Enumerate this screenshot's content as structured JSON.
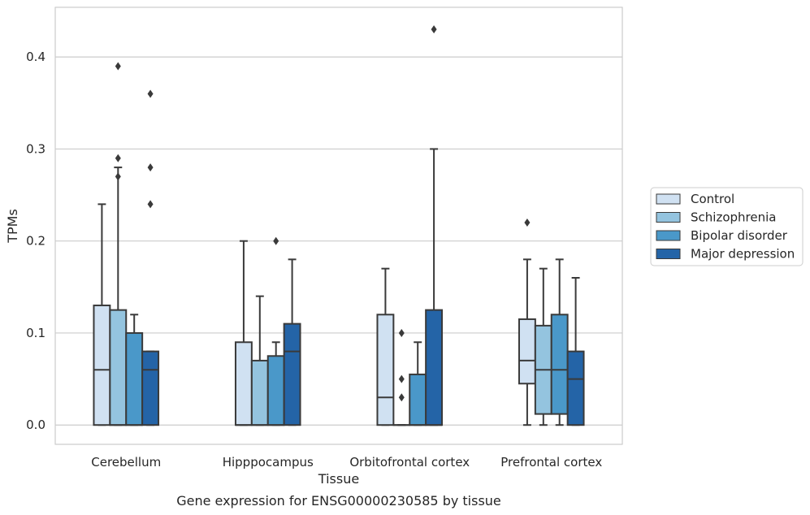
{
  "chart_data": {
    "type": "box",
    "xlabel": "Tissue",
    "ylabel": "TPMs",
    "caption": "Gene expression for ENSG00000230585 by tissue",
    "ylim": [
      -0.021,
      0.454
    ],
    "yticks": [
      0.0,
      0.1,
      0.2,
      0.3,
      0.4
    ],
    "ytick_labels": [
      "0.0",
      "0.1",
      "0.2",
      "0.3",
      "0.4"
    ],
    "grid": "horizontal",
    "legend_position": "right",
    "categories": [
      "Cerebellum",
      "Hipppocampus",
      "Orbitofrontal cortex",
      "Prefrontal cortex"
    ],
    "series": [
      {
        "name": "Control",
        "color": "#d0e1f2",
        "boxes": [
          {
            "whislo": 0.0,
            "q1": 0.0,
            "med": 0.06,
            "q3": 0.13,
            "whishi": 0.24,
            "fliers": []
          },
          {
            "whislo": 0.0,
            "q1": 0.0,
            "med": 0.0,
            "q3": 0.09,
            "whishi": 0.2,
            "fliers": []
          },
          {
            "whislo": 0.0,
            "q1": 0.0,
            "med": 0.03,
            "q3": 0.12,
            "whishi": 0.17,
            "fliers": []
          },
          {
            "whislo": 0.0,
            "q1": 0.045,
            "med": 0.07,
            "q3": 0.115,
            "whishi": 0.18,
            "fliers": [
              0.22
            ]
          }
        ]
      },
      {
        "name": "Schizophrenia",
        "color": "#94c4df",
        "boxes": [
          {
            "whislo": 0.0,
            "q1": 0.0,
            "med": 0.0,
            "q3": 0.125,
            "whishi": 0.28,
            "fliers": [
              0.27,
              0.29,
              0.39
            ]
          },
          {
            "whislo": 0.0,
            "q1": 0.0,
            "med": 0.0,
            "q3": 0.07,
            "whishi": 0.14,
            "fliers": []
          },
          {
            "whislo": 0.0,
            "q1": 0.0,
            "med": 0.0,
            "q3": 0.0,
            "whishi": 0.0,
            "fliers": [
              0.03,
              0.05,
              0.1
            ]
          },
          {
            "whislo": 0.0,
            "q1": 0.012,
            "med": 0.06,
            "q3": 0.108,
            "whishi": 0.17,
            "fliers": []
          }
        ]
      },
      {
        "name": "Bipolar disorder",
        "color": "#4a98c9",
        "boxes": [
          {
            "whislo": 0.0,
            "q1": 0.0,
            "med": 0.0,
            "q3": 0.1,
            "whishi": 0.12,
            "fliers": []
          },
          {
            "whislo": 0.0,
            "q1": 0.0,
            "med": 0.0,
            "q3": 0.075,
            "whishi": 0.09,
            "fliers": [
              0.2
            ]
          },
          {
            "whislo": 0.0,
            "q1": 0.0,
            "med": 0.0,
            "q3": 0.055,
            "whishi": 0.09,
            "fliers": []
          },
          {
            "whislo": 0.0,
            "q1": 0.012,
            "med": 0.06,
            "q3": 0.12,
            "whishi": 0.18,
            "fliers": []
          }
        ]
      },
      {
        "name": "Major depression",
        "color": "#2464a7",
        "boxes": [
          {
            "whislo": 0.0,
            "q1": 0.0,
            "med": 0.06,
            "q3": 0.08,
            "whishi": 0.08,
            "fliers": [
              0.24,
              0.28,
              0.36
            ]
          },
          {
            "whislo": 0.0,
            "q1": 0.0,
            "med": 0.08,
            "q3": 0.11,
            "whishi": 0.18,
            "fliers": []
          },
          {
            "whislo": 0.0,
            "q1": 0.0,
            "med": 0.0,
            "q3": 0.125,
            "whishi": 0.3,
            "fliers": [
              0.43
            ]
          },
          {
            "whislo": 0.0,
            "q1": 0.0,
            "med": 0.05,
            "q3": 0.08,
            "whishi": 0.16,
            "fliers": []
          }
        ]
      }
    ]
  }
}
